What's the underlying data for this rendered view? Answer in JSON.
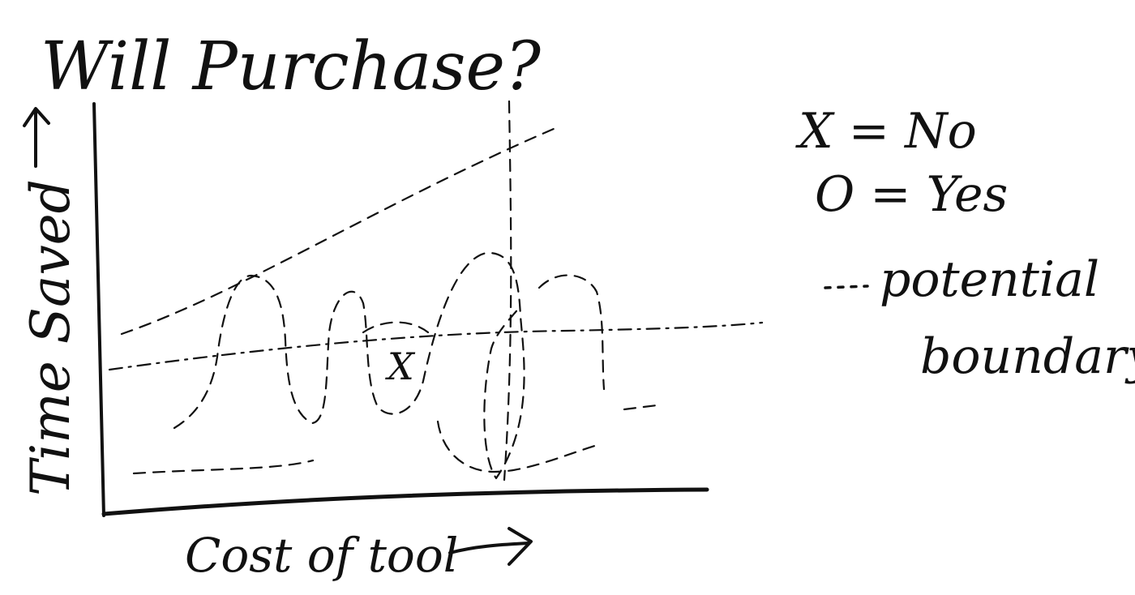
{
  "title": "Will Purchase?",
  "x_axis_label": "Cost of tool",
  "y_axis_label": "Time Saved",
  "legend": {
    "no_entry": "X = No",
    "yes_entry": "O = Yes",
    "boundary_entry_line1": "potential",
    "boundary_entry_line2": "boundary"
  },
  "marker_label": "X",
  "ink_color": "#111111",
  "background_color": "#ffffff"
}
